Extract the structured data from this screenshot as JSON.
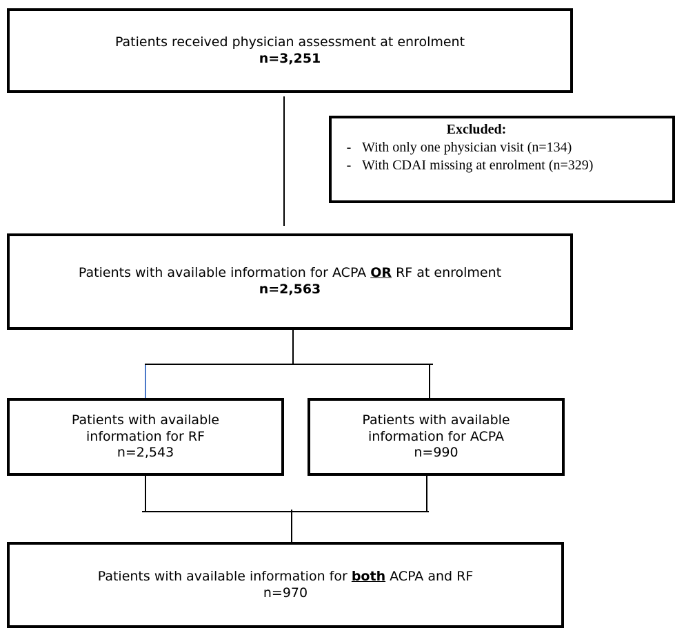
{
  "enrolment": {
    "title": "Patients received physician assessment at enrolment",
    "n": "n=3,251"
  },
  "excluded": {
    "header": "Excluded:",
    "items": [
      "With only one physician visit (n=134)",
      "With CDAI missing at enrolment (n=329)"
    ]
  },
  "acpa_or_rf": {
    "text_before": "Patients with available information for ACPA ",
    "emph": "OR",
    "text_after": " RF at enrolment",
    "n": "n=2,563"
  },
  "rf": {
    "line1": "Patients with available",
    "line2": "information for RF",
    "n": "n=2,543"
  },
  "acpa": {
    "line1": "Patients with available",
    "line2": "information for ACPA",
    "n": "n=990"
  },
  "both": {
    "text_before": "Patients with available information for ",
    "emph": "both",
    "text_after": " ACPA and RF",
    "n": "n=970"
  }
}
